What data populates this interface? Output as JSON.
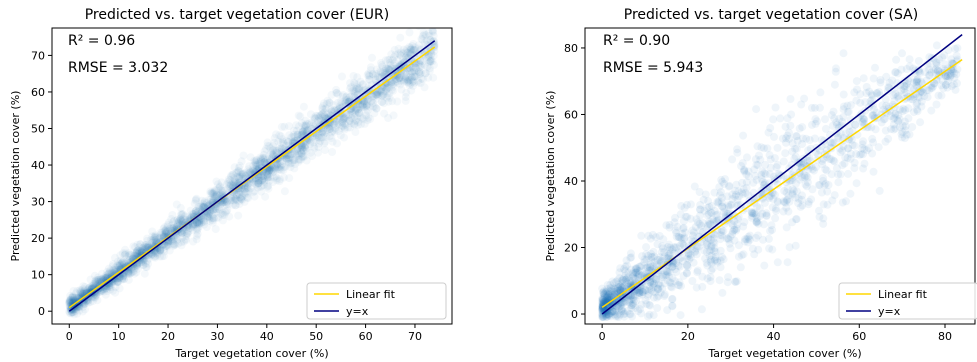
{
  "chart_data": [
    {
      "type": "scatter",
      "title": "Predicted vs. target vegetation cover (EUR)",
      "xlabel": "Target vegetation cover (%)",
      "ylabel": "Predicted vegetation cover (%)",
      "xlim": [
        -3.5,
        77.5
      ],
      "ylim": [
        -3.5,
        77.5
      ],
      "xticks": [
        0,
        10,
        20,
        30,
        40,
        50,
        60,
        70
      ],
      "yticks": [
        0,
        10,
        20,
        30,
        40,
        50,
        60,
        70
      ],
      "annotations": [
        "R² = 0.96",
        "RMSE = 3.032"
      ],
      "r2": 0.96,
      "rmse": 3.032,
      "point_color": "#1f77b4",
      "scatter": {
        "x_range": [
          0,
          74
        ],
        "spread_sd": 2.6,
        "count": 2600,
        "alpha": 0.05
      },
      "series": [
        {
          "name": "Linear fit",
          "color": "#ffd700",
          "x": [
            0,
            74
          ],
          "y": [
            1.0,
            72.3
          ]
        },
        {
          "name": "y=x",
          "color": "#000080",
          "x": [
            0,
            74
          ],
          "y": [
            0,
            74
          ]
        }
      ],
      "legend_position": "bottom-right"
    },
    {
      "type": "scatter",
      "title": "Predicted vs. target vegetation cover (SA)",
      "xlabel": "Target vegetation cover (%)",
      "ylabel": "Predicted vegetation cover (%)",
      "xlim": [
        -4,
        87
      ],
      "ylim": [
        -3,
        86
      ],
      "xticks": [
        0,
        20,
        40,
        60,
        80
      ],
      "yticks": [
        0,
        20,
        40,
        60,
        80
      ],
      "annotations": [
        "R² = 0.90",
        "RMSE = 5.943"
      ],
      "r2": 0.9,
      "rmse": 5.943,
      "point_color": "#1f77b4",
      "scatter": {
        "x_range": [
          0,
          83
        ],
        "spread_sd": 6.0,
        "count": 1500,
        "alpha": 0.07
      },
      "series": [
        {
          "name": "Linear fit",
          "color": "#ffd700",
          "x": [
            0,
            84
          ],
          "y": [
            2.0,
            76.5
          ]
        },
        {
          "name": "y=x",
          "color": "#000080",
          "x": [
            0,
            84
          ],
          "y": [
            0,
            84
          ]
        }
      ],
      "legend_position": "bottom-right"
    }
  ]
}
